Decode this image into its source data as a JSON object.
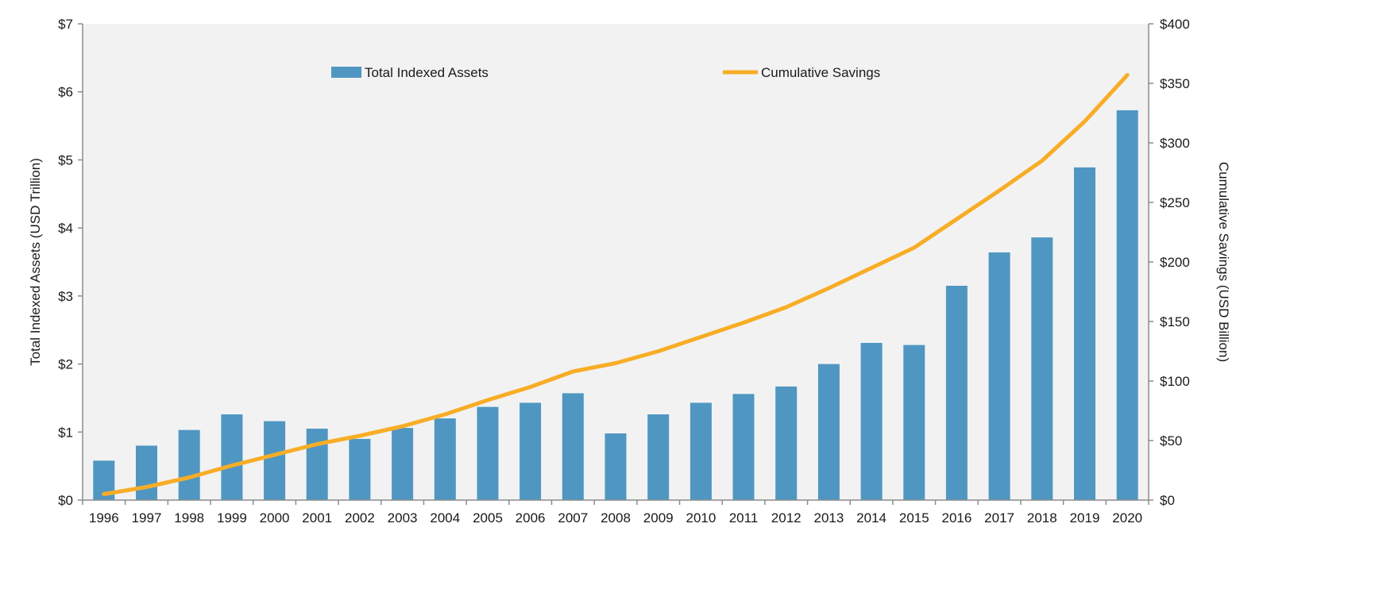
{
  "chart_data": {
    "type": "bar+line",
    "title": "",
    "categories": [
      "1996",
      "1997",
      "1998",
      "1999",
      "2000",
      "2001",
      "2002",
      "2003",
      "2004",
      "2005",
      "2006",
      "2007",
      "2008",
      "2009",
      "2010",
      "2011",
      "2012",
      "2013",
      "2014",
      "2015",
      "2016",
      "2017",
      "2018",
      "2019",
      "2020"
    ],
    "series": [
      {
        "name": "Total Indexed Assets",
        "type": "bar",
        "axis": "left",
        "color": "#4f97c2",
        "values": [
          0.58,
          0.8,
          1.03,
          1.26,
          1.16,
          1.05,
          0.9,
          1.06,
          1.2,
          1.37,
          1.43,
          1.57,
          0.98,
          1.26,
          1.43,
          1.56,
          1.67,
          2.0,
          2.31,
          2.28,
          3.15,
          3.64,
          3.86,
          4.89,
          5.73
        ]
      },
      {
        "name": "Cumulative Savings",
        "type": "line",
        "axis": "right",
        "color": "#f8ad26",
        "values": [
          5,
          11,
          19,
          29,
          38,
          47,
          54,
          62,
          72,
          84,
          95,
          108,
          115,
          125,
          137,
          149,
          162,
          178,
          195,
          212,
          236,
          260,
          285,
          318,
          357
        ]
      }
    ],
    "y_left": {
      "label": "Total Indexed Assets (USD Trillion)",
      "range": [
        0,
        7
      ],
      "ticks": [
        0,
        1,
        2,
        3,
        4,
        5,
        6,
        7
      ],
      "tick_labels": [
        "$0",
        "$1",
        "$2",
        "$3",
        "$4",
        "$5",
        "$6",
        "$7"
      ]
    },
    "y_right": {
      "label": "Cumulative Savings (USD Billion)",
      "range": [
        0,
        400
      ],
      "ticks": [
        0,
        50,
        100,
        150,
        200,
        250,
        300,
        350,
        400
      ],
      "tick_labels": [
        "$0",
        "$50",
        "$100",
        "$150",
        "$200",
        "$250",
        "$300",
        "$350",
        "$400"
      ]
    },
    "legend_position": "top",
    "grid": false
  },
  "colors": {
    "plot_background": "#f2f2f2",
    "axis_line": "#8c8c8c"
  }
}
